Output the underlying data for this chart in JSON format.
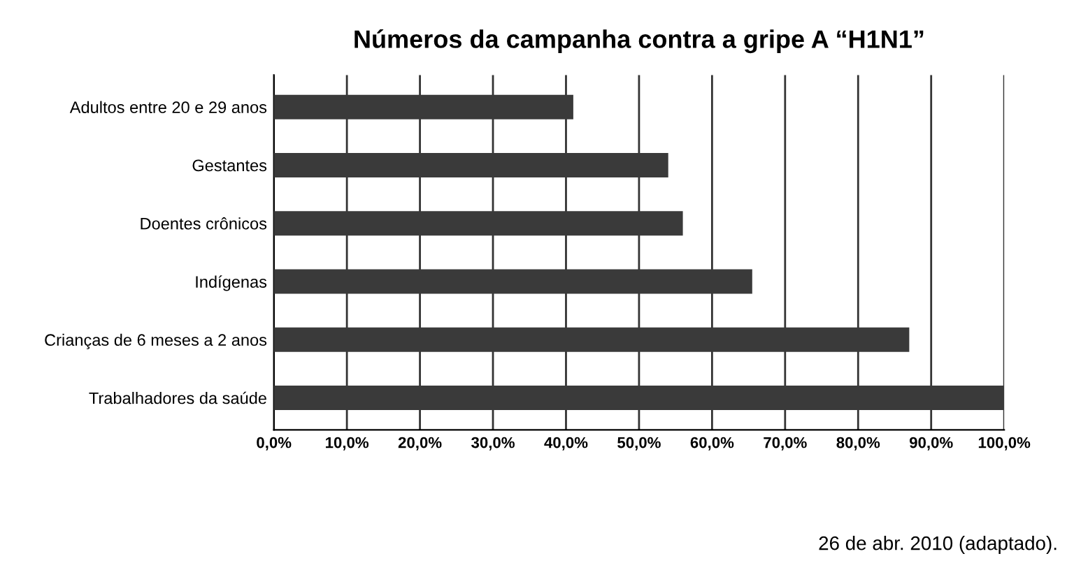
{
  "chart_data": {
    "type": "bar",
    "orientation": "horizontal",
    "title": "Números da campanha contra a gripe A “H1N1”",
    "categories": [
      "Adultos entre 20 e 29 anos",
      "Gestantes",
      "Doentes crônicos",
      "Indígenas",
      "Crianças de 6 meses a 2 anos",
      "Trabalhadores da saúde"
    ],
    "values": [
      41,
      54,
      56,
      65.5,
      87,
      100
    ],
    "color": "#3a3a3a",
    "xlim": [
      0,
      100
    ],
    "xticks": [
      {
        "value": 0,
        "label": "0,0%"
      },
      {
        "value": 10,
        "label": "10,0%"
      },
      {
        "value": 20,
        "label": "20,0%"
      },
      {
        "value": 30,
        "label": "30,0%"
      },
      {
        "value": 40,
        "label": "40,0%"
      },
      {
        "value": 50,
        "label": "50,0%"
      },
      {
        "value": 60,
        "label": "60,0%"
      },
      {
        "value": 70,
        "label": "70,0%"
      },
      {
        "value": 80,
        "label": "80,0%"
      },
      {
        "value": 90,
        "label": "90,0%"
      },
      {
        "value": 100,
        "label": "100,0%"
      }
    ],
    "grid": "x",
    "annotations": [
      "26 de abr. 2010 (adaptado)."
    ]
  }
}
